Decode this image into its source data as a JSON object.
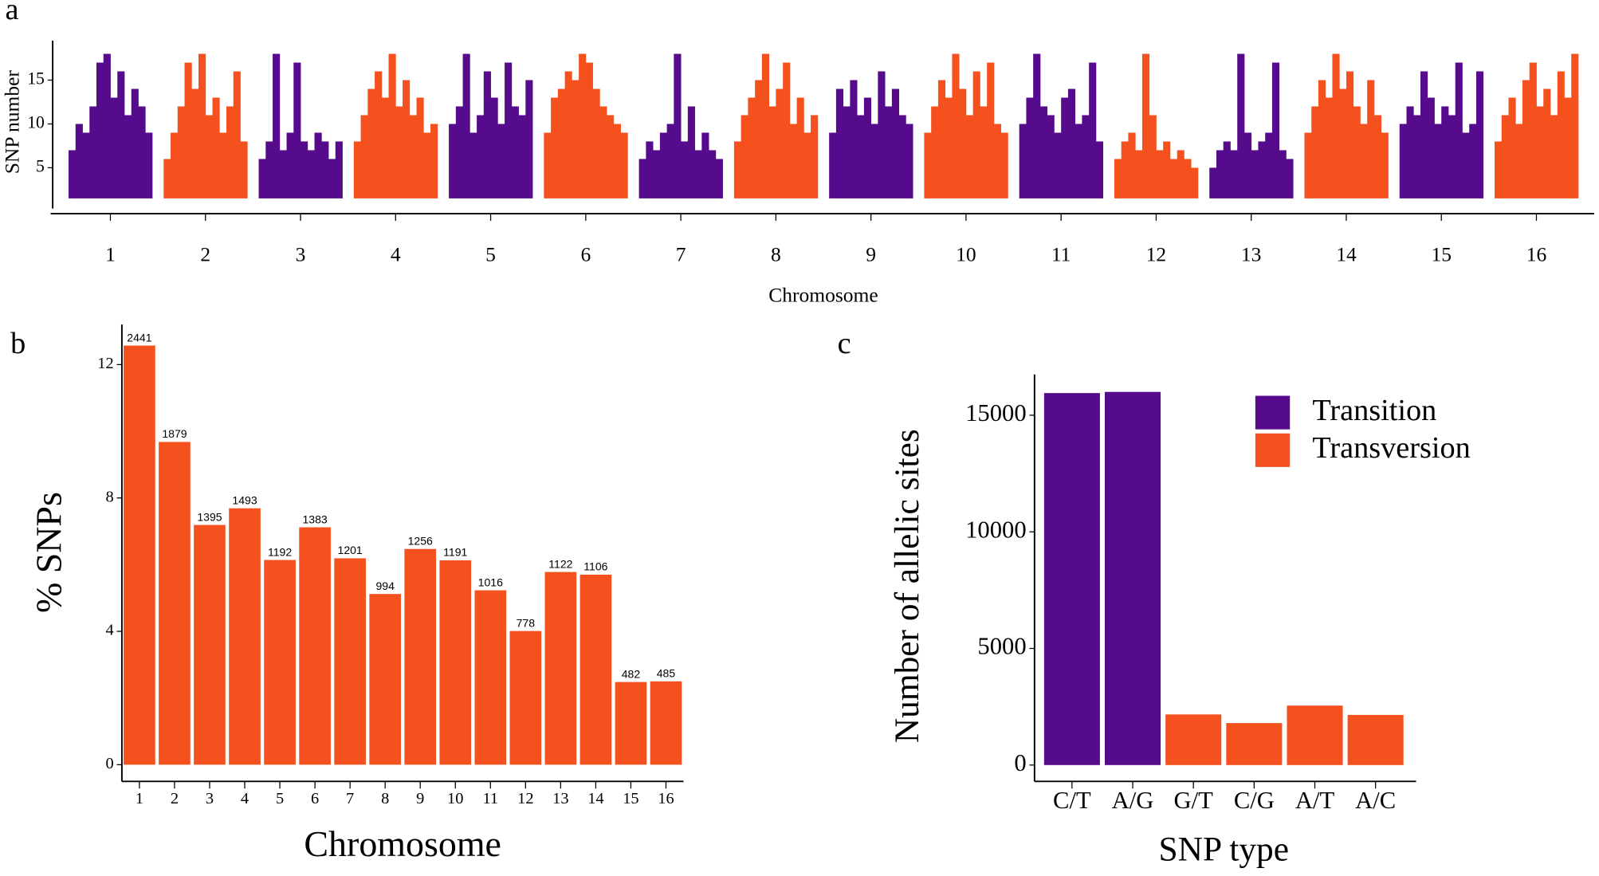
{
  "chart_data": [
    {
      "type": "density",
      "label": "a",
      "x_label": "Chromosome",
      "y_label": "SNP number",
      "categories": [
        "1",
        "2",
        "3",
        "4",
        "5",
        "6",
        "7",
        "8",
        "9",
        "10",
        "11",
        "12",
        "13",
        "14",
        "15",
        "16"
      ],
      "colors": [
        "#560b8d",
        "#f5511f"
      ],
      "values": [
        [
          7,
          10,
          9,
          12,
          17,
          18,
          13,
          16,
          11,
          14,
          12,
          9
        ],
        [
          6,
          9,
          12,
          17,
          14,
          18,
          11,
          13,
          9,
          12,
          16,
          8
        ],
        [
          6,
          8,
          18,
          7,
          9,
          17,
          8,
          7,
          9,
          8,
          6,
          8
        ],
        [
          8,
          11,
          14,
          16,
          13,
          18,
          12,
          15,
          11,
          13,
          9,
          10
        ],
        [
          10,
          12,
          18,
          9,
          11,
          16,
          13,
          10,
          17,
          12,
          11,
          15
        ],
        [
          9,
          13,
          14,
          16,
          15,
          18,
          17,
          14,
          12,
          11,
          10,
          9
        ],
        [
          6,
          8,
          7,
          9,
          10,
          18,
          8,
          12,
          7,
          9,
          7,
          6
        ],
        [
          8,
          11,
          13,
          15,
          18,
          12,
          14,
          17,
          10,
          13,
          9,
          11
        ],
        [
          9,
          14,
          12,
          15,
          11,
          13,
          10,
          16,
          12,
          14,
          11,
          10
        ],
        [
          9,
          12,
          15,
          13,
          18,
          14,
          11,
          16,
          12,
          17,
          10,
          9
        ],
        [
          10,
          13,
          18,
          12,
          11,
          9,
          13,
          14,
          10,
          11,
          17,
          8
        ],
        [
          6,
          8,
          9,
          7,
          18,
          11,
          7,
          8,
          6,
          7,
          6,
          5
        ],
        [
          5,
          7,
          8,
          7,
          18,
          9,
          7,
          8,
          9,
          17,
          7,
          6
        ],
        [
          9,
          12,
          15,
          13,
          18,
          14,
          16,
          12,
          10,
          15,
          11,
          9
        ],
        [
          10,
          12,
          11,
          16,
          13,
          10,
          12,
          11,
          17,
          9,
          10,
          16
        ],
        [
          8,
          11,
          13,
          10,
          15,
          17,
          12,
          14,
          11,
          16,
          13,
          18
        ]
      ],
      "ylim": [
        1.5,
        19.5
      ],
      "yticks": [
        5,
        10,
        15
      ]
    },
    {
      "type": "bar",
      "label": "b",
      "x_label": "Chromosome",
      "y_label": "% SNPs",
      "categories": [
        "1",
        "2",
        "3",
        "4",
        "5",
        "6",
        "7",
        "8",
        "9",
        "10",
        "11",
        "12",
        "13",
        "14",
        "15",
        "16"
      ],
      "values": [
        12.57,
        9.68,
        7.19,
        7.69,
        6.14,
        7.12,
        6.19,
        5.12,
        6.47,
        6.13,
        5.23,
        4.01,
        5.78,
        5.7,
        2.48,
        2.5
      ],
      "counts": [
        2441,
        1879,
        1395,
        1493,
        1192,
        1383,
        1201,
        994,
        1256,
        1191,
        1016,
        778,
        1122,
        1106,
        482,
        485
      ],
      "color": "#f5511f",
      "ylim": [
        -0.5,
        13.2
      ],
      "yticks": [
        0,
        4,
        8,
        12
      ]
    },
    {
      "type": "bar",
      "label": "c",
      "x_label": "SNP type",
      "y_label": "Number of allelic sites",
      "categories": [
        "C/T",
        "A/G",
        "G/T",
        "C/G",
        "A/T",
        "A/C"
      ],
      "series": [
        {
          "name": "Transition",
          "color": "#560b8d",
          "values": [
            15950,
            16000,
            null,
            null,
            null,
            null
          ]
        },
        {
          "name": "Transversion",
          "color": "#f5511f",
          "values": [
            null,
            null,
            2170,
            1800,
            2550,
            2150
          ]
        }
      ],
      "ylim": [
        -700,
        16750
      ],
      "yticks": [
        0,
        5000,
        10000,
        15000
      ]
    }
  ]
}
